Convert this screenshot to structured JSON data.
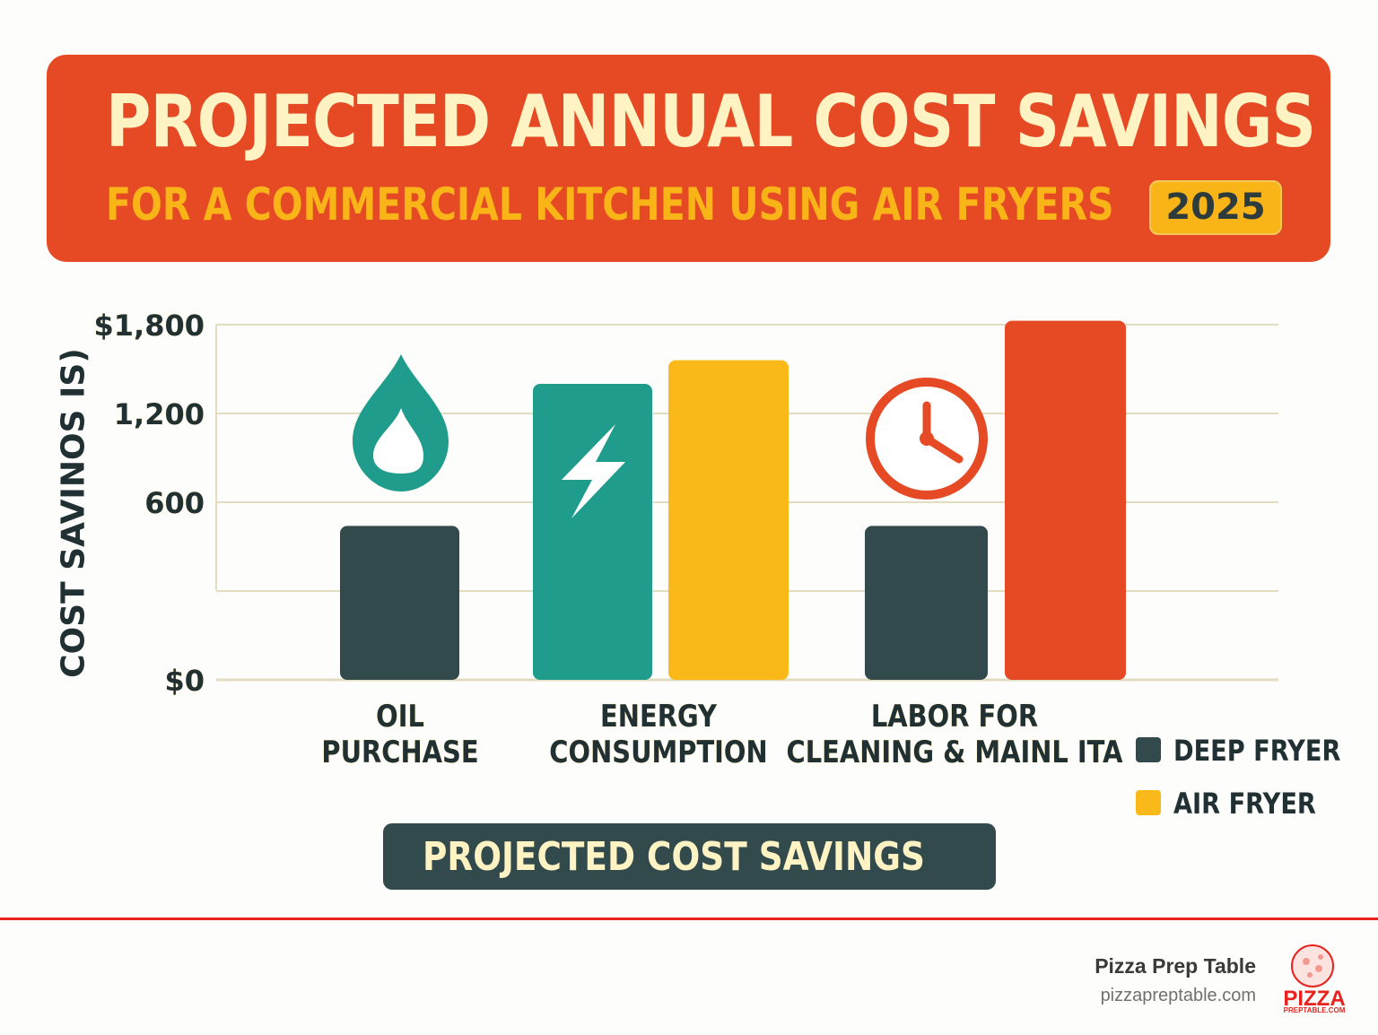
{
  "header": {
    "title": "PROJECTED ANNUAL COST SAVINGS",
    "subtitle": "FOR A COMMERCIAL KITCHEN USING AIR FRYERS",
    "year": "2025"
  },
  "colors": {
    "banner": "#e64a25",
    "deep_fryer": "#334a4c",
    "air_fryer": "#fbb919",
    "teal": "#1f9c8c",
    "labor": "#e64a25"
  },
  "chart_data": {
    "type": "bar",
    "ylabel": "COST SAVINOS IS)",
    "ylim": [
      0,
      1800
    ],
    "y_tick_labels": [
      "$0",
      "",
      "600",
      "1,200",
      "$1,800"
    ],
    "grid": true,
    "categories": [
      "OIL\nPURCHASE",
      "ENERGY\nCONSUMPTION",
      "LABOR FOR\nCLEANING & MAINL ITA"
    ],
    "category_lines": [
      [
        "OIL",
        "PURCHASE"
      ],
      [
        "ENERGY",
        "CONSUMPTION"
      ],
      [
        "LABOR FOR",
        "CLEANING & MAINL ITA"
      ]
    ],
    "series": [
      {
        "name": "DEEP FRYER",
        "values": [
          780,
          1500,
          780
        ],
        "bar_colors": [
          "#334a4c",
          "#1f9c8c",
          "#334a4c"
        ]
      },
      {
        "name": "AIR FRYER",
        "values": [
          null,
          1620,
          1820
        ],
        "bar_colors": [
          null,
          "#fbb919",
          "#e64a25"
        ]
      }
    ],
    "icons": [
      "oil-drop-icon",
      "lightning-bolt-icon",
      "clock-icon"
    ],
    "legend_position": "bottom-right"
  },
  "footer": {
    "button_label": "PROJECTED COST SAVINGS",
    "brand_name": "Pizza Prep Table",
    "brand_url": "pizzapreptable.com",
    "logo_text": "PIZZA",
    "logo_subtext": "PREPTABLE.COM"
  }
}
